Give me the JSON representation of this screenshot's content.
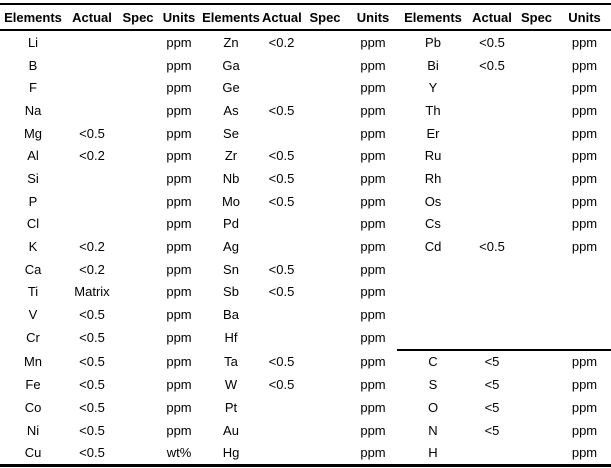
{
  "table": {
    "title": "elemental-analysis-table",
    "header": [
      "Elements",
      "Actual",
      "Spec",
      "Units",
      "Elements",
      "Actual",
      "Spec",
      "Units",
      "Elements",
      "Actual",
      "Spec",
      "Units"
    ],
    "rows": [
      [
        "Li",
        "",
        "",
        "ppm",
        "Zn",
        "<0.2",
        "",
        "ppm",
        "Pb",
        "<0.5",
        "",
        "ppm"
      ],
      [
        "B",
        "",
        "",
        "ppm",
        "Ga",
        "",
        "",
        "ppm",
        "Bi",
        "<0.5",
        "",
        "ppm"
      ],
      [
        "F",
        "",
        "",
        "ppm",
        "Ge",
        "",
        "",
        "ppm",
        "Y",
        "",
        "",
        "ppm"
      ],
      [
        "Na",
        "",
        "",
        "ppm",
        "As",
        "<0.5",
        "",
        "ppm",
        "Th",
        "",
        "",
        "ppm"
      ],
      [
        "Mg",
        "<0.5",
        "",
        "ppm",
        "Se",
        "",
        "",
        "ppm",
        "Er",
        "",
        "",
        "ppm"
      ],
      [
        "Al",
        "<0.2",
        "",
        "ppm",
        "Zr",
        "<0.5",
        "",
        "ppm",
        "Ru",
        "",
        "",
        "ppm"
      ],
      [
        "Si",
        "",
        "",
        "ppm",
        "Nb",
        "<0.5",
        "",
        "ppm",
        "Rh",
        "",
        "",
        "ppm"
      ],
      [
        "P",
        "",
        "",
        "ppm",
        "Mo",
        "<0.5",
        "",
        "ppm",
        "Os",
        "",
        "",
        "ppm"
      ],
      [
        "Cl",
        "",
        "",
        "ppm",
        "Pd",
        "",
        "",
        "ppm",
        "Cs",
        "",
        "",
        "ppm"
      ],
      [
        "K",
        "<0.2",
        "",
        "ppm",
        "Ag",
        "",
        "",
        "ppm",
        "Cd",
        "<0.5",
        "",
        "ppm"
      ],
      [
        "Ca",
        "<0.2",
        "",
        "ppm",
        "Sn",
        "<0.5",
        "",
        "ppm",
        "",
        "",
        "",
        ""
      ],
      [
        "Ti",
        "Matrix",
        "",
        "ppm",
        "Sb",
        "<0.5",
        "",
        "ppm",
        "",
        "",
        "",
        ""
      ],
      [
        "V",
        "<0.5",
        "",
        "ppm",
        "Ba",
        "",
        "",
        "ppm",
        "",
        "",
        "",
        ""
      ],
      [
        "Cr",
        "<0.5",
        "",
        "ppm",
        "Hf",
        "",
        "",
        "ppm",
        "",
        "",
        "",
        ""
      ],
      [
        "Mn",
        "<0.5",
        "",
        "ppm",
        "Ta",
        "<0.5",
        "",
        "ppm",
        "C",
        "<5",
        "",
        "ppm"
      ],
      [
        "Fe",
        "<0.5",
        "",
        "ppm",
        "W",
        "<0.5",
        "",
        "ppm",
        "S",
        "<5",
        "",
        "ppm"
      ],
      [
        "Co",
        "<0.5",
        "",
        "ppm",
        "Pt",
        "",
        "",
        "ppm",
        "O",
        "<5",
        "",
        "ppm"
      ],
      [
        "Ni",
        "<0.5",
        "",
        "ppm",
        "Au",
        "",
        "",
        "ppm",
        "N",
        "<5",
        "",
        "ppm"
      ],
      [
        "Cu",
        "<0.5",
        "",
        "wt%",
        "Hg",
        "",
        "",
        "ppm",
        "H",
        "",
        "",
        "ppm"
      ]
    ],
    "separator": {
      "row_index": 14,
      "col_start": 8,
      "col_end": 11
    }
  },
  "colors": {
    "text": "#000000",
    "background": "#ffffff",
    "rule": "#000000"
  }
}
